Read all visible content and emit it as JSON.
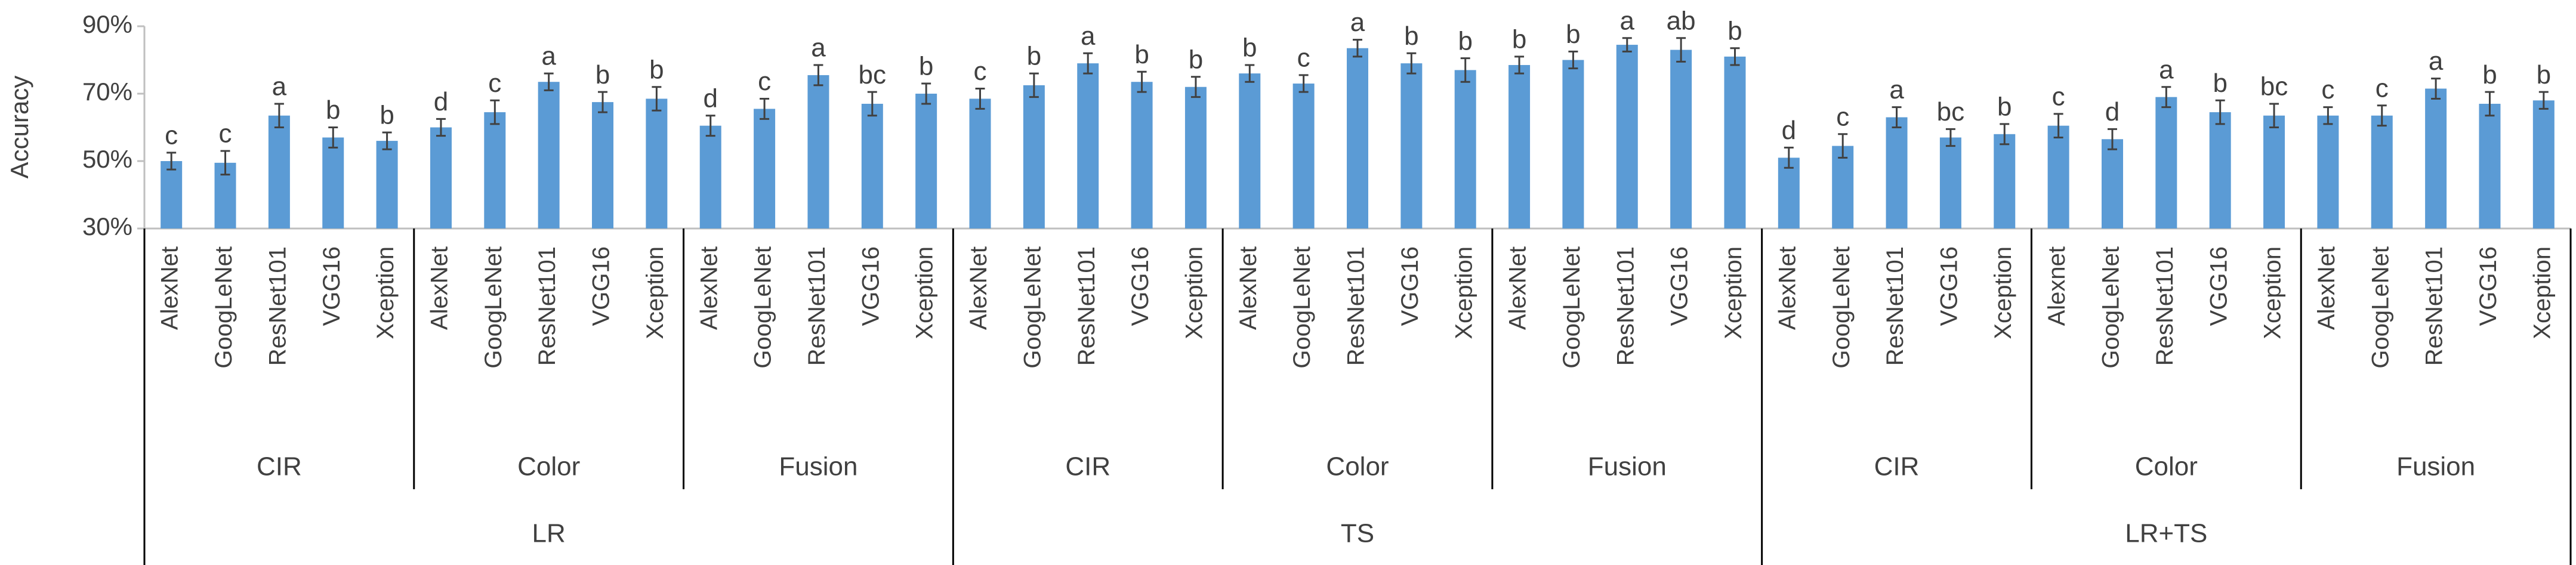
{
  "chart_data": {
    "type": "bar",
    "y_label": "Accuracy",
    "color": "#5b9bd5",
    "ylim": [
      30,
      90
    ],
    "yticks": [
      {
        "value": 30,
        "label": "30%"
      },
      {
        "value": 50,
        "label": "50%"
      },
      {
        "value": 70,
        "label": "70%"
      },
      {
        "value": 90,
        "label": "90%"
      }
    ],
    "groups": [
      {
        "name": "LR",
        "subgroups": [
          {
            "name": "CIR",
            "categories": [
              "AlexNet",
              "GoogLeNet",
              "ResNet101",
              "VGG16",
              "Xception"
            ],
            "values": [
              50,
              49.5,
              63.5,
              57,
              56
            ],
            "errors": [
              2.5,
              3.5,
              3.5,
              3,
              2.5
            ],
            "letters": [
              "c",
              "c",
              "a",
              "b",
              "b"
            ]
          },
          {
            "name": "Color",
            "categories": [
              "AlexNet",
              "GoogLeNet",
              "ResNet101",
              "VGG16",
              "Xception"
            ],
            "values": [
              60,
              64.5,
              73.5,
              67.5,
              68.5
            ],
            "errors": [
              2.5,
              3.5,
              2.5,
              3,
              3.5
            ],
            "letters": [
              "d",
              "c",
              "a",
              "b",
              "b"
            ]
          },
          {
            "name": "Fusion",
            "categories": [
              "AlexNet",
              "GoogLeNet",
              "ResNet101",
              "VGG16",
              "Xception"
            ],
            "values": [
              60.5,
              65.5,
              75.5,
              67,
              70
            ],
            "errors": [
              3,
              3,
              3,
              3.5,
              3
            ],
            "letters": [
              "d",
              "c",
              "a",
              "bc",
              "b"
            ]
          }
        ]
      },
      {
        "name": "TS",
        "subgroups": [
          {
            "name": "CIR",
            "categories": [
              "AlexNet",
              "GoogLeNet",
              "ResNet101",
              "VGG16",
              "Xception"
            ],
            "values": [
              68.5,
              72.5,
              79,
              73.5,
              72
            ],
            "errors": [
              3,
              3.5,
              3,
              3,
              3
            ],
            "letters": [
              "c",
              "b",
              "a",
              "b",
              "b"
            ]
          },
          {
            "name": "Color",
            "categories": [
              "AlexNet",
              "GoogLeNet",
              "ResNet101",
              "VGG16",
              "Xception"
            ],
            "values": [
              76,
              73,
              83.5,
              79,
              77
            ],
            "errors": [
              2.5,
              2.5,
              2.5,
              3,
              3.5
            ],
            "letters": [
              "b",
              "c",
              "a",
              "b",
              "b"
            ]
          },
          {
            "name": "Fusion",
            "categories": [
              "AlexNet",
              "GoogLeNet",
              "ResNet101",
              "VGG16",
              "Xception"
            ],
            "values": [
              78.5,
              80,
              84.5,
              83,
              81
            ],
            "errors": [
              2.5,
              2.5,
              2,
              3.5,
              2.5
            ],
            "letters": [
              "b",
              "b",
              "a",
              "ab",
              "b"
            ]
          }
        ]
      },
      {
        "name": "LR+TS",
        "subgroups": [
          {
            "name": "CIR",
            "categories": [
              "AlexNet",
              "GoogLeNet",
              "ResNet101",
              "VGG16",
              "Xception"
            ],
            "values": [
              51,
              54.5,
              63,
              57,
              58
            ],
            "errors": [
              3,
              3.5,
              3,
              2.5,
              3
            ],
            "letters": [
              "d",
              "c",
              "a",
              "bc",
              "b"
            ]
          },
          {
            "name": "Color",
            "categories": [
              "Alexnet",
              "GoogLeNet",
              "ResNet101",
              "VGG16",
              "Xception"
            ],
            "values": [
              60.5,
              56.5,
              69,
              64.5,
              63.5
            ],
            "errors": [
              3.5,
              3,
              3,
              3.5,
              3.5
            ],
            "letters": [
              "c",
              "d",
              "a",
              "b",
              "bc"
            ]
          },
          {
            "name": "Fusion",
            "categories": [
              "AlexNet",
              "GoogLeNet",
              "ResNet101",
              "VGG16",
              "Xception"
            ],
            "values": [
              63.5,
              63.5,
              71.5,
              67,
              68
            ],
            "errors": [
              2.5,
              3,
              3,
              3.5,
              2.5
            ],
            "letters": [
              "c",
              "c",
              "a",
              "b",
              "b"
            ]
          }
        ]
      }
    ]
  }
}
